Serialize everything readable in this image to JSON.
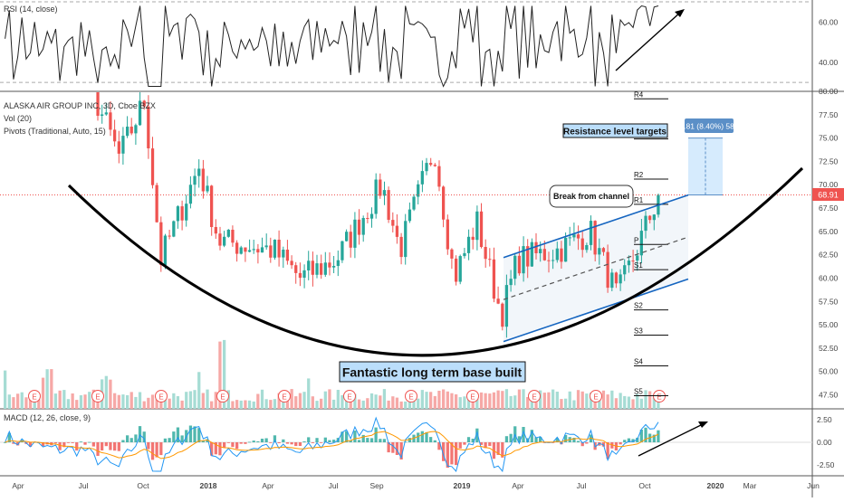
{
  "colors": {
    "up": "#26a69a",
    "down": "#ef5350",
    "vol_up": "#a6dcd4",
    "vol_down": "#f6a8a6",
    "rsi_line": "#222222",
    "macd_line": "#2196f3",
    "signal_line": "#ff9800",
    "channel": "#1565c0",
    "price_line": "#ef5350",
    "label_box": "#bbdefb"
  },
  "chart_data": [
    {
      "type": "line",
      "title": "RSI (14, close)",
      "ylim": [
        26,
        70
      ],
      "y_ticks": [
        "60.00",
        "40.00"
      ],
      "levels": [
        70,
        30
      ],
      "trend_arrow": "rising"
    },
    {
      "type": "candlestick",
      "title": "ALASKA AIR GROUP INC, 3D, Cboe BZX",
      "indicators": [
        "Vol (20)",
        "Pivots (Traditional, Auto, 15)"
      ],
      "ylim": [
        46,
        80
      ],
      "y_ticks": [
        "80.00",
        "77.50",
        "75.00",
        "72.50",
        "70.00",
        "67.50",
        "65.00",
        "62.50",
        "60.00",
        "57.50",
        "55.00",
        "52.50",
        "50.00",
        "47.50"
      ],
      "last_price": "68.91",
      "last_price_value": 68.91,
      "pivots": [
        {
          "label": "R4",
          "value": 79.2
        },
        {
          "label": "R3",
          "value": 74.9
        },
        {
          "label": "R2",
          "value": 70.6
        },
        {
          "label": "R1",
          "value": 67.9
        },
        {
          "label": "P",
          "value": 63.6
        },
        {
          "label": "S1",
          "value": 60.9
        },
        {
          "label": "S2",
          "value": 56.6
        },
        {
          "label": "S3",
          "value": 53.9
        },
        {
          "label": "S4",
          "value": 50.6
        },
        {
          "label": "S5",
          "value": 47.4
        }
      ],
      "series": [
        {
          "period": "2017 Apr",
          "close": 87.5
        },
        {
          "period": "2017 Jul",
          "close": 82.0
        },
        {
          "period": "2017 Aug",
          "close": 73.0
        },
        {
          "period": "2017 Oct",
          "close": 79.0
        },
        {
          "period": "2017 Nov",
          "close": 62.0
        },
        {
          "period": "2018 Jan",
          "close": 72.0
        },
        {
          "period": "2018 Feb",
          "close": 64.0
        },
        {
          "period": "2018 Apr",
          "close": 63.0
        },
        {
          "period": "2018 May",
          "close": 60.0
        },
        {
          "period": "2018 Jul",
          "close": 62.0
        },
        {
          "period": "2018 Sep",
          "close": 70.0
        },
        {
          "period": "2018 Oct",
          "close": 63.0
        },
        {
          "period": "2018 Nov",
          "close": 74.0
        },
        {
          "period": "2018 Dec",
          "close": 60.0
        },
        {
          "period": "2019 Jan",
          "close": 66.0
        },
        {
          "period": "2019 Mar",
          "close": 56.0
        },
        {
          "period": "2019 Apr",
          "close": 62.0
        },
        {
          "period": "2019 Jun",
          "close": 63.0
        },
        {
          "period": "2019 Jul",
          "close": 65.0
        },
        {
          "period": "2019 Aug",
          "close": 58.0
        },
        {
          "period": "2019 Oct",
          "close": 68.91
        }
      ],
      "annotations": {
        "targets_label": "Resistance level targets",
        "measure_label": "5.81 (8.40%) 581",
        "break_label": "Break from channel",
        "base_label": "Fantastic long term base built",
        "earnings_marker": "E"
      }
    },
    {
      "type": "bar",
      "title": "MACD (12, 26, close, 9)",
      "ylim": [
        -3.6,
        3.6
      ],
      "y_ticks": [
        "2.50",
        "0.00",
        "-2.50"
      ],
      "trend_arrow": "rising"
    }
  ],
  "x_axis": {
    "labels": [
      "Apr",
      "Jul",
      "Oct",
      "2018",
      "Apr",
      "Jul",
      "Sep",
      "2019",
      "Apr",
      "Jul",
      "Oct",
      "2020",
      "Mar",
      "Jun"
    ]
  }
}
